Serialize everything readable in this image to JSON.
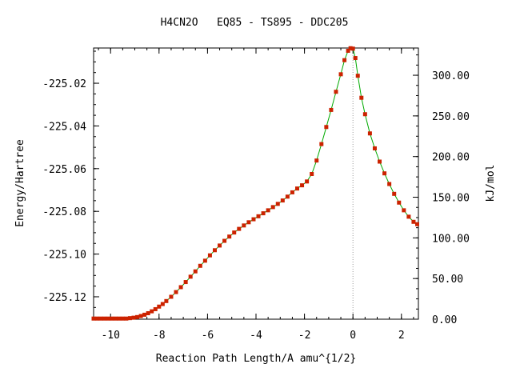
{
  "chart_data": {
    "type": "line",
    "title": "H4CN2O   EQ85 - TS895 - DDC205",
    "xlabel": "Reaction Path Length/A amu^{1/2}",
    "ylabel": "Energy/Hartree",
    "y2label": "kJ/mol",
    "xlim": [
      -10.7,
      2.7
    ],
    "ylim": [
      -225.1305,
      -225.0035
    ],
    "y2lim": [
      0,
      333.5
    ],
    "x_ticks": [
      "-10",
      "-8",
      "-6",
      "-4",
      "-2",
      "0",
      "2"
    ],
    "x_tick_values": [
      -10,
      -8,
      -6,
      -4,
      -2,
      0,
      2
    ],
    "y_ticks": [
      "-225.02",
      "-225.04",
      "-225.06",
      "-225.08",
      "-225.10",
      "-225.12"
    ],
    "y_tick_values": [
      -225.02,
      -225.04,
      -225.06,
      -225.08,
      -225.1,
      -225.12
    ],
    "y2_ticks": [
      "300.00",
      "250.00",
      "200.00",
      "150.00",
      "100.00",
      "50.00",
      "0.00"
    ],
    "y2_tick_values": [
      300,
      250,
      200,
      150,
      100,
      50,
      0
    ],
    "ts_x": 0,
    "line_color": "#00aa00",
    "marker_color": "#cc2200",
    "vline_color": "#999999",
    "grid": false,
    "legend": "none",
    "series": [
      {
        "x": [
          -10.7,
          -10.55,
          -10.4,
          -10.25,
          -10.1,
          -9.95,
          -9.8,
          -9.65,
          -9.5,
          -9.35,
          -9.2,
          -9.05,
          -8.9,
          -8.75,
          -8.6,
          -8.45,
          -8.3,
          -8.15,
          -8.0,
          -7.85,
          -7.7,
          -7.5,
          -7.3,
          -7.1,
          -6.9,
          -6.7,
          -6.5,
          -6.3,
          -6.1,
          -5.9,
          -5.7,
          -5.5,
          -5.3,
          -5.1,
          -4.9,
          -4.7,
          -4.5,
          -4.3,
          -4.1,
          -3.9,
          -3.7,
          -3.5,
          -3.3,
          -3.1,
          -2.9,
          -2.7,
          -2.5,
          -2.3,
          -2.1,
          -1.9,
          -1.7,
          -1.5,
          -1.3,
          -1.1,
          -0.9,
          -0.7,
          -0.5,
          -0.35,
          -0.2,
          -0.1,
          0.0,
          0.1,
          0.2,
          0.35,
          0.5,
          0.7,
          0.9,
          1.1,
          1.3,
          1.5,
          1.7,
          1.9,
          2.1,
          2.3,
          2.5,
          2.65
        ],
        "y": [
          -225.1302,
          -225.1302,
          -225.1302,
          -225.1302,
          -225.1302,
          -225.1302,
          -225.1302,
          -225.1302,
          -225.1302,
          -225.1302,
          -225.13,
          -225.1298,
          -225.1295,
          -225.129,
          -225.1284,
          -225.1277,
          -225.1268,
          -225.1258,
          -225.1246,
          -225.1234,
          -225.122,
          -225.12,
          -225.1178,
          -225.1155,
          -225.1131,
          -225.1106,
          -225.1081,
          -225.1055,
          -225.1031,
          -225.1006,
          -225.0982,
          -225.096,
          -225.0938,
          -225.0918,
          -225.0899,
          -225.0882,
          -225.0866,
          -225.0851,
          -225.0837,
          -225.0823,
          -225.0809,
          -225.0795,
          -225.078,
          -225.0765,
          -225.0749,
          -225.0731,
          -225.0711,
          -225.0693,
          -225.0678,
          -225.066,
          -225.0625,
          -225.0562,
          -225.0485,
          -225.0405,
          -225.0325,
          -225.024,
          -225.0158,
          -225.0092,
          -225.0048,
          -225.0036,
          -225.0038,
          -225.0082,
          -225.0165,
          -225.0268,
          -225.0345,
          -225.0435,
          -225.0505,
          -225.0567,
          -225.0622,
          -225.0672,
          -225.0718,
          -225.0759,
          -225.0795,
          -225.0825,
          -225.0849,
          -225.086
        ]
      }
    ]
  }
}
